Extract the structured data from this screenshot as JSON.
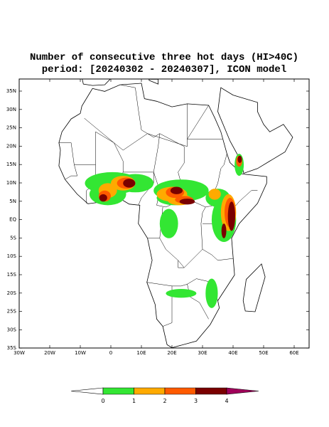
{
  "title": [
    "Number of consecutive three hot days (HI>40C)",
    "period: [20240302 - 20240307], ICON model"
  ],
  "lat_labels": [
    "35N",
    "30N",
    "25N",
    "20N",
    "15N",
    "10N",
    "5N",
    "EQ",
    "5S",
    "10S",
    "15S",
    "20S",
    "25S",
    "30S",
    "35S"
  ],
  "lon_labels": [
    "30W",
    "20W",
    "10W",
    "0",
    "10E",
    "20E",
    "30E",
    "40E",
    "50E",
    "60E"
  ],
  "colorbar": {
    "labels": [
      "0",
      "1",
      "2",
      "3",
      "4"
    ],
    "colors": [
      "#ffffff",
      "#33e633",
      "#ffaa00",
      "#ff5a00",
      "#7a0000",
      "#a0005a"
    ]
  }
}
